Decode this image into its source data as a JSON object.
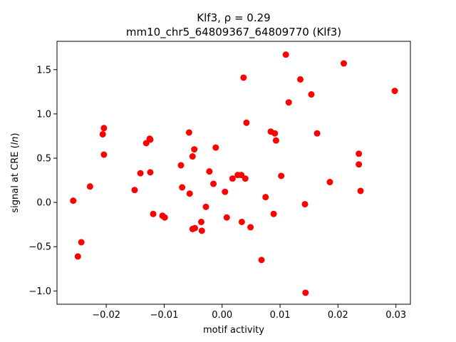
{
  "chart_data": {
    "type": "scatter",
    "title": "Klf3, ρ = 0.29",
    "subtitle": "mm10_chr5_64809367_64809770 (Klf3)",
    "xlabel": "motif activity",
    "ylabel": "signal at CRE (ln)",
    "xlim": [
      -0.0285,
      0.0325
    ],
    "ylim": [
      -1.15,
      1.82
    ],
    "x_ticks": [
      -0.02,
      -0.01,
      0.0,
      0.01,
      0.02,
      0.03
    ],
    "x_tick_labels": [
      "−0.02",
      "−0.01",
      "0.00",
      "0.01",
      "0.02",
      "0.03"
    ],
    "y_ticks": [
      -1.0,
      -0.5,
      0.0,
      0.5,
      1.0,
      1.5
    ],
    "y_tick_labels": [
      "−1.0",
      "−0.5",
      "0.0",
      "0.5",
      "1.0",
      "1.5"
    ],
    "grid": false,
    "marker_color": "#ff0000",
    "points": [
      {
        "x": -0.0257,
        "y": 0.02
      },
      {
        "x": -0.0249,
        "y": -0.61
      },
      {
        "x": -0.0243,
        "y": -0.45
      },
      {
        "x": -0.0228,
        "y": 0.18
      },
      {
        "x": -0.0206,
        "y": 0.77
      },
      {
        "x": -0.0204,
        "y": 0.84
      },
      {
        "x": -0.0204,
        "y": 0.54
      },
      {
        "x": -0.0151,
        "y": 0.14
      },
      {
        "x": -0.0141,
        "y": 0.33
      },
      {
        "x": -0.0131,
        "y": 0.67
      },
      {
        "x": -0.0125,
        "y": 0.72
      },
      {
        "x": -0.0124,
        "y": 0.71
      },
      {
        "x": -0.0124,
        "y": 0.34
      },
      {
        "x": -0.0119,
        "y": -0.13
      },
      {
        "x": -0.0103,
        "y": -0.15
      },
      {
        "x": -0.0099,
        "y": -0.17
      },
      {
        "x": -0.0071,
        "y": 0.42
      },
      {
        "x": -0.0069,
        "y": 0.17
      },
      {
        "x": -0.0057,
        "y": 0.79
      },
      {
        "x": -0.0056,
        "y": 0.1
      },
      {
        "x": -0.0051,
        "y": 0.52
      },
      {
        "x": -0.0051,
        "y": -0.3
      },
      {
        "x": -0.0048,
        "y": 0.6
      },
      {
        "x": -0.0047,
        "y": -0.29
      },
      {
        "x": -0.0036,
        "y": -0.22
      },
      {
        "x": -0.0035,
        "y": -0.32
      },
      {
        "x": -0.0028,
        "y": -0.05
      },
      {
        "x": -0.0022,
        "y": 0.35
      },
      {
        "x": -0.0015,
        "y": 0.21
      },
      {
        "x": -0.0011,
        "y": 0.62
      },
      {
        "x": 0.0005,
        "y": 0.12
      },
      {
        "x": 0.0008,
        "y": -0.17
      },
      {
        "x": 0.0018,
        "y": 0.27
      },
      {
        "x": 0.0027,
        "y": 0.31
      },
      {
        "x": 0.0033,
        "y": 0.31
      },
      {
        "x": 0.0034,
        "y": -0.22
      },
      {
        "x": 0.0037,
        "y": 1.41
      },
      {
        "x": 0.004,
        "y": 0.27
      },
      {
        "x": 0.0042,
        "y": 0.9
      },
      {
        "x": 0.0049,
        "y": -0.28
      },
      {
        "x": 0.0068,
        "y": -0.65
      },
      {
        "x": 0.0075,
        "y": 0.06
      },
      {
        "x": 0.0084,
        "y": 0.8
      },
      {
        "x": 0.0089,
        "y": -0.13
      },
      {
        "x": 0.0091,
        "y": 0.78
      },
      {
        "x": 0.0093,
        "y": 0.7
      },
      {
        "x": 0.0102,
        "y": 0.3
      },
      {
        "x": 0.011,
        "y": 1.67
      },
      {
        "x": 0.0115,
        "y": 1.13
      },
      {
        "x": 0.0135,
        "y": 1.39
      },
      {
        "x": 0.0143,
        "y": -0.02
      },
      {
        "x": 0.0144,
        "y": -1.02
      },
      {
        "x": 0.0154,
        "y": 1.22
      },
      {
        "x": 0.0164,
        "y": 0.78
      },
      {
        "x": 0.0186,
        "y": 0.23
      },
      {
        "x": 0.021,
        "y": 1.57
      },
      {
        "x": 0.0236,
        "y": 0.55
      },
      {
        "x": 0.0236,
        "y": 0.43
      },
      {
        "x": 0.0239,
        "y": 0.13
      },
      {
        "x": 0.0298,
        "y": 1.26
      }
    ]
  }
}
